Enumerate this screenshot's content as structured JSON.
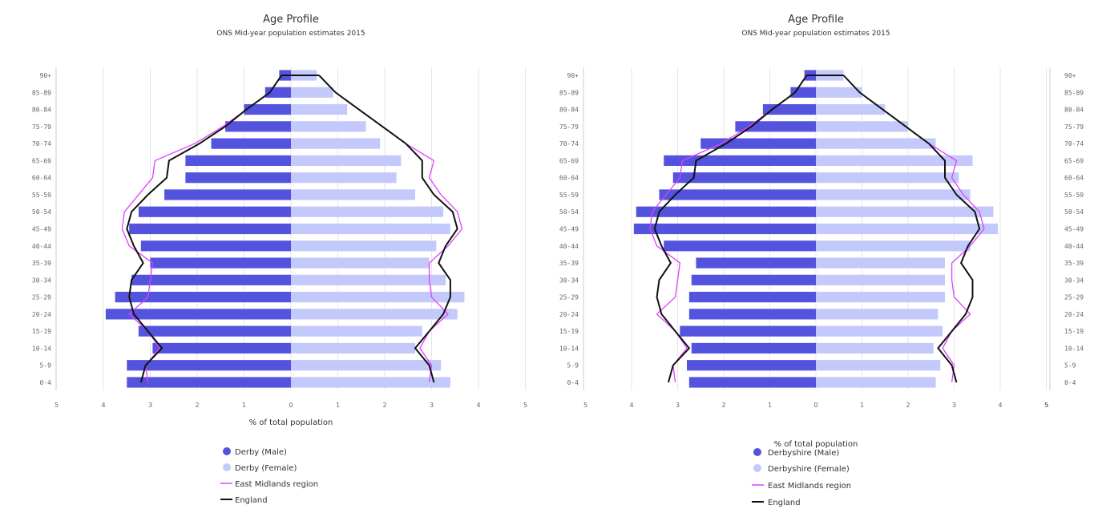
{
  "charts": [
    {
      "title": "Age Profile",
      "subtitle": "ONS Mid-year population estimates 2015",
      "xlabel": "% of total population",
      "legend": [
        "Derby (Male)",
        "Derby (Female)",
        "East Midlands region",
        "England"
      ]
    },
    {
      "title": "Age Profile",
      "subtitle": "ONS Mid-year population estimates 2015",
      "xlabel": "% of total population",
      "legend": [
        "Derbyshire (Male)",
        "Derbyshire (Female)",
        "East Midlands region",
        "England"
      ]
    },
    {
      "categories": [
        "90+",
        "85-89",
        "80-84",
        "75-79",
        "70-74",
        "65-69",
        "60-64",
        "55-59",
        "50-54",
        "45-49",
        "40-44",
        "35-39",
        "30-34",
        "25-29",
        "20-24",
        "15-19",
        "10-14",
        "5-9",
        "0-4"
      ],
      "ticks": [
        "5"
      ]
    }
  ],
  "colors": {
    "male": "#5353dd",
    "female": "#c3c9fb",
    "region": "#e040ff",
    "england": "#111111",
    "grid": "#e6e6e6",
    "axis": "#cccccc"
  },
  "chart_data": [
    {
      "type": "bar",
      "title": "Age Profile",
      "subtitle": "ONS Mid-year population estimates 2015",
      "xlabel": "% of total population",
      "ylabel": "",
      "xlim": [
        -5,
        5
      ],
      "grid": true,
      "legend_position": "bottom",
      "categories": [
        "90+",
        "85-89",
        "80-84",
        "75-79",
        "70-74",
        "65-69",
        "60-64",
        "55-59",
        "50-54",
        "45-49",
        "40-44",
        "35-39",
        "30-34",
        "25-29",
        "20-24",
        "15-19",
        "10-14",
        "5-9",
        "0-4"
      ],
      "ticks": [
        "5",
        "4",
        "3",
        "2",
        "1",
        "0",
        "1",
        "2",
        "3",
        "4",
        "5"
      ],
      "series": [
        {
          "name": "Derby (Male)",
          "kind": "bar",
          "side": "left",
          "values": [
            0.25,
            0.55,
            1.0,
            1.4,
            1.7,
            2.25,
            2.25,
            2.7,
            3.25,
            3.45,
            3.2,
            3.0,
            3.4,
            3.75,
            3.95,
            3.25,
            2.95,
            3.5,
            3.5
          ]
        },
        {
          "name": "Derby (Female)",
          "kind": "bar",
          "side": "right",
          "values": [
            0.55,
            0.9,
            1.2,
            1.6,
            1.9,
            2.35,
            2.25,
            2.65,
            3.25,
            3.4,
            3.1,
            2.95,
            3.3,
            3.7,
            3.55,
            2.8,
            2.65,
            3.2,
            3.4
          ]
        },
        {
          "name": "East Midlands region",
          "kind": "line",
          "left": [
            0.2,
            0.45,
            0.95,
            1.45,
            2.05,
            2.9,
            2.95,
            3.25,
            3.55,
            3.6,
            3.45,
            2.95,
            3.0,
            3.05,
            3.45,
            3.05,
            2.8,
            3.1,
            3.05
          ],
          "right": [
            0.6,
            0.95,
            1.45,
            1.95,
            2.45,
            3.05,
            2.95,
            3.2,
            3.55,
            3.65,
            3.35,
            2.95,
            2.95,
            3.0,
            3.35,
            2.95,
            2.75,
            3.0,
            2.95
          ]
        },
        {
          "name": "England",
          "kind": "line",
          "left": [
            0.2,
            0.45,
            0.95,
            1.4,
            1.95,
            2.6,
            2.65,
            3.05,
            3.4,
            3.5,
            3.35,
            3.15,
            3.4,
            3.45,
            3.35,
            3.05,
            2.75,
            3.1,
            3.2
          ],
          "right": [
            0.6,
            0.95,
            1.45,
            1.95,
            2.45,
            2.8,
            2.8,
            3.05,
            3.45,
            3.55,
            3.3,
            3.15,
            3.4,
            3.4,
            3.25,
            2.95,
            2.65,
            2.95,
            3.05
          ]
        }
      ]
    },
    {
      "type": "bar",
      "title": "Age Profile",
      "subtitle": "ONS Mid-year population estimates 2015",
      "xlabel": "% of total population",
      "ylabel": "",
      "xlim": [
        -5,
        5
      ],
      "grid": true,
      "legend_position": "bottom",
      "categories": [
        "90+",
        "85-89",
        "80-84",
        "75-79",
        "70-74",
        "65-69",
        "60-64",
        "55-59",
        "50-54",
        "45-49",
        "40-44",
        "35-39",
        "30-34",
        "25-29",
        "20-24",
        "15-19",
        "10-14",
        "5-9",
        "0-4"
      ],
      "ticks": [
        "5",
        "4",
        "3",
        "2",
        "1",
        "0",
        "1",
        "2",
        "3",
        "4",
        "5"
      ],
      "series": [
        {
          "name": "Derbyshire (Male)",
          "kind": "bar",
          "side": "left",
          "values": [
            0.25,
            0.55,
            1.15,
            1.75,
            2.5,
            3.3,
            3.1,
            3.4,
            3.9,
            3.95,
            3.3,
            2.6,
            2.7,
            2.75,
            2.75,
            2.95,
            2.7,
            2.8,
            2.75
          ]
        },
        {
          "name": "Derbyshire (Female)",
          "kind": "bar",
          "side": "right",
          "values": [
            0.6,
            1.0,
            1.5,
            2.0,
            2.6,
            3.4,
            3.1,
            3.35,
            3.85,
            3.95,
            3.35,
            2.8,
            2.8,
            2.8,
            2.65,
            2.75,
            2.55,
            2.7,
            2.6
          ]
        },
        {
          "name": "East Midlands region",
          "kind": "line",
          "left": [
            0.2,
            0.45,
            0.95,
            1.45,
            2.05,
            2.9,
            2.95,
            3.25,
            3.55,
            3.6,
            3.45,
            2.95,
            3.0,
            3.05,
            3.45,
            3.05,
            2.8,
            3.1,
            3.05
          ],
          "right": [
            0.6,
            0.95,
            1.45,
            1.95,
            2.45,
            3.05,
            2.95,
            3.2,
            3.55,
            3.65,
            3.35,
            2.95,
            2.95,
            3.0,
            3.35,
            2.95,
            2.75,
            3.0,
            2.95
          ]
        },
        {
          "name": "England",
          "kind": "line",
          "left": [
            0.2,
            0.45,
            0.95,
            1.4,
            1.95,
            2.6,
            2.65,
            3.05,
            3.4,
            3.5,
            3.35,
            3.15,
            3.4,
            3.45,
            3.35,
            3.05,
            2.75,
            3.1,
            3.2
          ],
          "right": [
            0.6,
            0.95,
            1.45,
            1.95,
            2.45,
            2.8,
            2.8,
            3.05,
            3.45,
            3.55,
            3.3,
            3.15,
            3.4,
            3.4,
            3.25,
            2.95,
            2.65,
            2.95,
            3.05
          ]
        }
      ]
    }
  ]
}
